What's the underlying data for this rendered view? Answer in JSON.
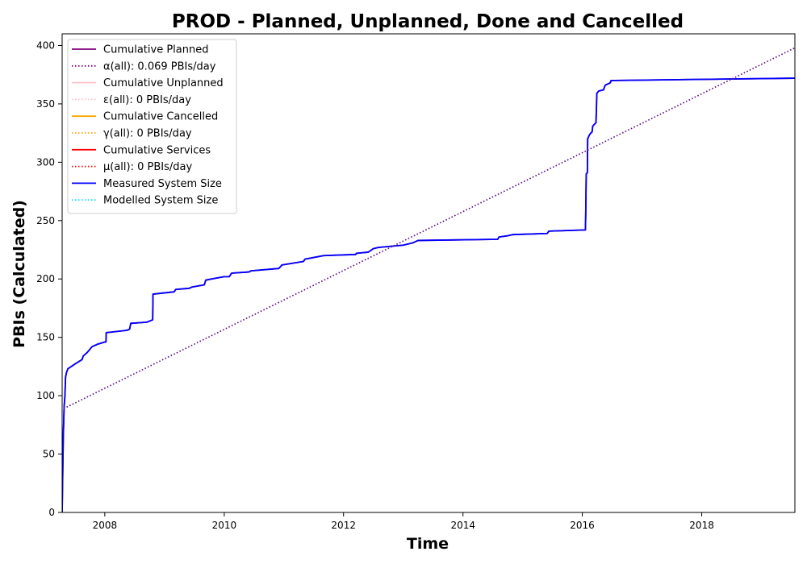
{
  "chart_data": {
    "type": "line",
    "title": "PROD - Planned, Unplanned, Done  and Cancelled",
    "xlabel": "Time",
    "ylabel": "PBIs (Calculated)",
    "xlim": [
      "2007-04-15",
      "2019-07-25"
    ],
    "ylim": [
      0,
      410
    ],
    "x_ticks": [
      {
        "value": "2008-01-01",
        "label": "2008"
      },
      {
        "value": "2010-01-01",
        "label": "2010"
      },
      {
        "value": "2012-01-01",
        "label": "2012"
      },
      {
        "value": "2014-01-01",
        "label": "2014"
      },
      {
        "value": "2016-01-01",
        "label": "2016"
      },
      {
        "value": "2018-01-01",
        "label": "2018"
      }
    ],
    "y_ticks": [
      0,
      50,
      100,
      150,
      200,
      250,
      300,
      350,
      400
    ],
    "grid": false,
    "legend_position": "top-left",
    "legend": [
      {
        "label": "Cumulative Planned",
        "color": "#800080",
        "style": "solid"
      },
      {
        "label": "α(all): 0.069 PBIs/day",
        "color": "#800080",
        "style": "dotted"
      },
      {
        "label": "Cumulative Unplanned",
        "color": "#ffc0cb",
        "style": "solid"
      },
      {
        "label": "ε(all): 0 PBIs/day",
        "color": "#ffc0cb",
        "style": "dotted"
      },
      {
        "label": "Cumulative Cancelled",
        "color": "#ffa500",
        "style": "solid"
      },
      {
        "label": "γ(all): 0 PBIs/day",
        "color": "#ffa500",
        "style": "dotted"
      },
      {
        "label": "Cumulative Services",
        "color": "#ff0000",
        "style": "solid"
      },
      {
        "label": "μ(all): 0 PBIs/day",
        "color": "#ff0000",
        "style": "dotted"
      },
      {
        "label": "Measured System Size",
        "color": "#0000ff",
        "style": "solid"
      },
      {
        "label": "Modelled System Size",
        "color": "#00e5ee",
        "style": "dotted"
      }
    ],
    "series": [
      {
        "name": "Cumulative Planned",
        "color": "#800080",
        "style": "solid",
        "points": [
          [
            "2007-04-15",
            0
          ],
          [
            "2007-04-22",
            65
          ],
          [
            "2007-04-27",
            90
          ],
          [
            "2007-05-02",
            100
          ],
          [
            "2007-05-06",
            116
          ],
          [
            "2007-05-12",
            120
          ],
          [
            "2007-05-20",
            123
          ],
          [
            "2007-07-01",
            127
          ],
          [
            "2007-08-15",
            131
          ],
          [
            "2007-08-22",
            134
          ],
          [
            "2007-09-15",
            137
          ],
          [
            "2007-10-15",
            142
          ],
          [
            "2007-11-15",
            144
          ],
          [
            "2008-01-01",
            146
          ],
          [
            "2008-01-08",
            146
          ],
          [
            "2008-01-10",
            154
          ],
          [
            "2008-05-15",
            156
          ],
          [
            "2008-06-01",
            157
          ],
          [
            "2008-06-08",
            162
          ],
          [
            "2008-09-15",
            163
          ],
          [
            "2008-10-20",
            165
          ],
          [
            "2008-10-22",
            187
          ],
          [
            "2009-03-01",
            189
          ],
          [
            "2009-03-10",
            191
          ],
          [
            "2009-06-01",
            192
          ],
          [
            "2009-06-15",
            193
          ],
          [
            "2009-09-01",
            195
          ],
          [
            "2009-09-10",
            199
          ],
          [
            "2009-10-15",
            200
          ],
          [
            "2010-01-01",
            202
          ],
          [
            "2010-02-01",
            202
          ],
          [
            "2010-02-15",
            205
          ],
          [
            "2010-06-01",
            206
          ],
          [
            "2010-06-15",
            207
          ],
          [
            "2010-12-01",
            209
          ],
          [
            "2010-12-20",
            212
          ],
          [
            "2011-05-01",
            215
          ],
          [
            "2011-05-10",
            217
          ],
          [
            "2011-09-01",
            220
          ],
          [
            "2012-03-15",
            221
          ],
          [
            "2012-03-20",
            222
          ],
          [
            "2012-06-01",
            223
          ],
          [
            "2012-07-01",
            226
          ],
          [
            "2012-08-01",
            227
          ],
          [
            "2013-01-01",
            229
          ],
          [
            "2013-03-01",
            231
          ],
          [
            "2013-04-01",
            233
          ],
          [
            "2014-08-01",
            234
          ],
          [
            "2014-08-10",
            236
          ],
          [
            "2014-10-01",
            237
          ],
          [
            "2014-11-01",
            238
          ],
          [
            "2015-06-01",
            239
          ],
          [
            "2015-06-10",
            241
          ],
          [
            "2016-01-20",
            242
          ],
          [
            "2016-01-22",
            255
          ],
          [
            "2016-01-25",
            290
          ],
          [
            "2016-02-01",
            291
          ],
          [
            "2016-02-03",
            320
          ],
          [
            "2016-02-12",
            323
          ],
          [
            "2016-02-22",
            325
          ],
          [
            "2016-03-01",
            326
          ],
          [
            "2016-03-05",
            331
          ],
          [
            "2016-03-25",
            334
          ],
          [
            "2016-03-30",
            359
          ],
          [
            "2016-04-10",
            361
          ],
          [
            "2016-05-10",
            362
          ],
          [
            "2016-05-20",
            366
          ],
          [
            "2016-06-20",
            368
          ],
          [
            "2016-06-25",
            370
          ],
          [
            "2018-01-01",
            371
          ],
          [
            "2019-07-25",
            372
          ]
        ]
      },
      {
        "name": "Measured System Size",
        "color": "#0000ff",
        "style": "solid",
        "points": [
          [
            "2007-04-15",
            0
          ],
          [
            "2007-04-22",
            65
          ],
          [
            "2007-04-27",
            90
          ],
          [
            "2007-05-02",
            100
          ],
          [
            "2007-05-06",
            116
          ],
          [
            "2007-05-12",
            120
          ],
          [
            "2007-05-20",
            123
          ],
          [
            "2007-07-01",
            127
          ],
          [
            "2007-08-15",
            131
          ],
          [
            "2007-08-22",
            134
          ],
          [
            "2007-09-15",
            137
          ],
          [
            "2007-10-15",
            142
          ],
          [
            "2007-11-15",
            144
          ],
          [
            "2008-01-01",
            146
          ],
          [
            "2008-01-08",
            146
          ],
          [
            "2008-01-10",
            154
          ],
          [
            "2008-05-15",
            156
          ],
          [
            "2008-06-01",
            157
          ],
          [
            "2008-06-08",
            162
          ],
          [
            "2008-09-15",
            163
          ],
          [
            "2008-10-20",
            165
          ],
          [
            "2008-10-22",
            187
          ],
          [
            "2009-03-01",
            189
          ],
          [
            "2009-03-10",
            191
          ],
          [
            "2009-06-01",
            192
          ],
          [
            "2009-06-15",
            193
          ],
          [
            "2009-09-01",
            195
          ],
          [
            "2009-09-10",
            199
          ],
          [
            "2009-10-15",
            200
          ],
          [
            "2010-01-01",
            202
          ],
          [
            "2010-02-01",
            202
          ],
          [
            "2010-02-15",
            205
          ],
          [
            "2010-06-01",
            206
          ],
          [
            "2010-06-15",
            207
          ],
          [
            "2010-12-01",
            209
          ],
          [
            "2010-12-20",
            212
          ],
          [
            "2011-05-01",
            215
          ],
          [
            "2011-05-10",
            217
          ],
          [
            "2011-09-01",
            220
          ],
          [
            "2012-03-15",
            221
          ],
          [
            "2012-03-20",
            222
          ],
          [
            "2012-06-01",
            223
          ],
          [
            "2012-07-01",
            226
          ],
          [
            "2012-08-01",
            227
          ],
          [
            "2013-01-01",
            229
          ],
          [
            "2013-03-01",
            231
          ],
          [
            "2013-04-01",
            233
          ],
          [
            "2014-08-01",
            234
          ],
          [
            "2014-08-10",
            236
          ],
          [
            "2014-10-01",
            237
          ],
          [
            "2014-11-01",
            238
          ],
          [
            "2015-06-01",
            239
          ],
          [
            "2015-06-10",
            241
          ],
          [
            "2016-01-20",
            242
          ],
          [
            "2016-01-22",
            255
          ],
          [
            "2016-01-25",
            290
          ],
          [
            "2016-02-01",
            291
          ],
          [
            "2016-02-03",
            320
          ],
          [
            "2016-02-12",
            323
          ],
          [
            "2016-02-22",
            325
          ],
          [
            "2016-03-01",
            326
          ],
          [
            "2016-03-05",
            331
          ],
          [
            "2016-03-25",
            334
          ],
          [
            "2016-03-30",
            359
          ],
          [
            "2016-04-10",
            361
          ],
          [
            "2016-05-10",
            362
          ],
          [
            "2016-05-20",
            366
          ],
          [
            "2016-06-20",
            368
          ],
          [
            "2016-06-25",
            370
          ],
          [
            "2018-01-01",
            371
          ],
          [
            "2019-07-25",
            372
          ]
        ]
      },
      {
        "name": "Modelled System Size",
        "color": "#00e5ee",
        "style": "dotted",
        "points": [
          [
            "2007-04-25",
            89
          ],
          [
            "2019-07-25",
            398
          ]
        ]
      },
      {
        "name": "α(all): 0.069 PBIs/day",
        "color": "#800080",
        "style": "dotted",
        "points": [
          [
            "2007-04-25",
            89
          ],
          [
            "2019-07-25",
            398
          ]
        ]
      }
    ]
  }
}
